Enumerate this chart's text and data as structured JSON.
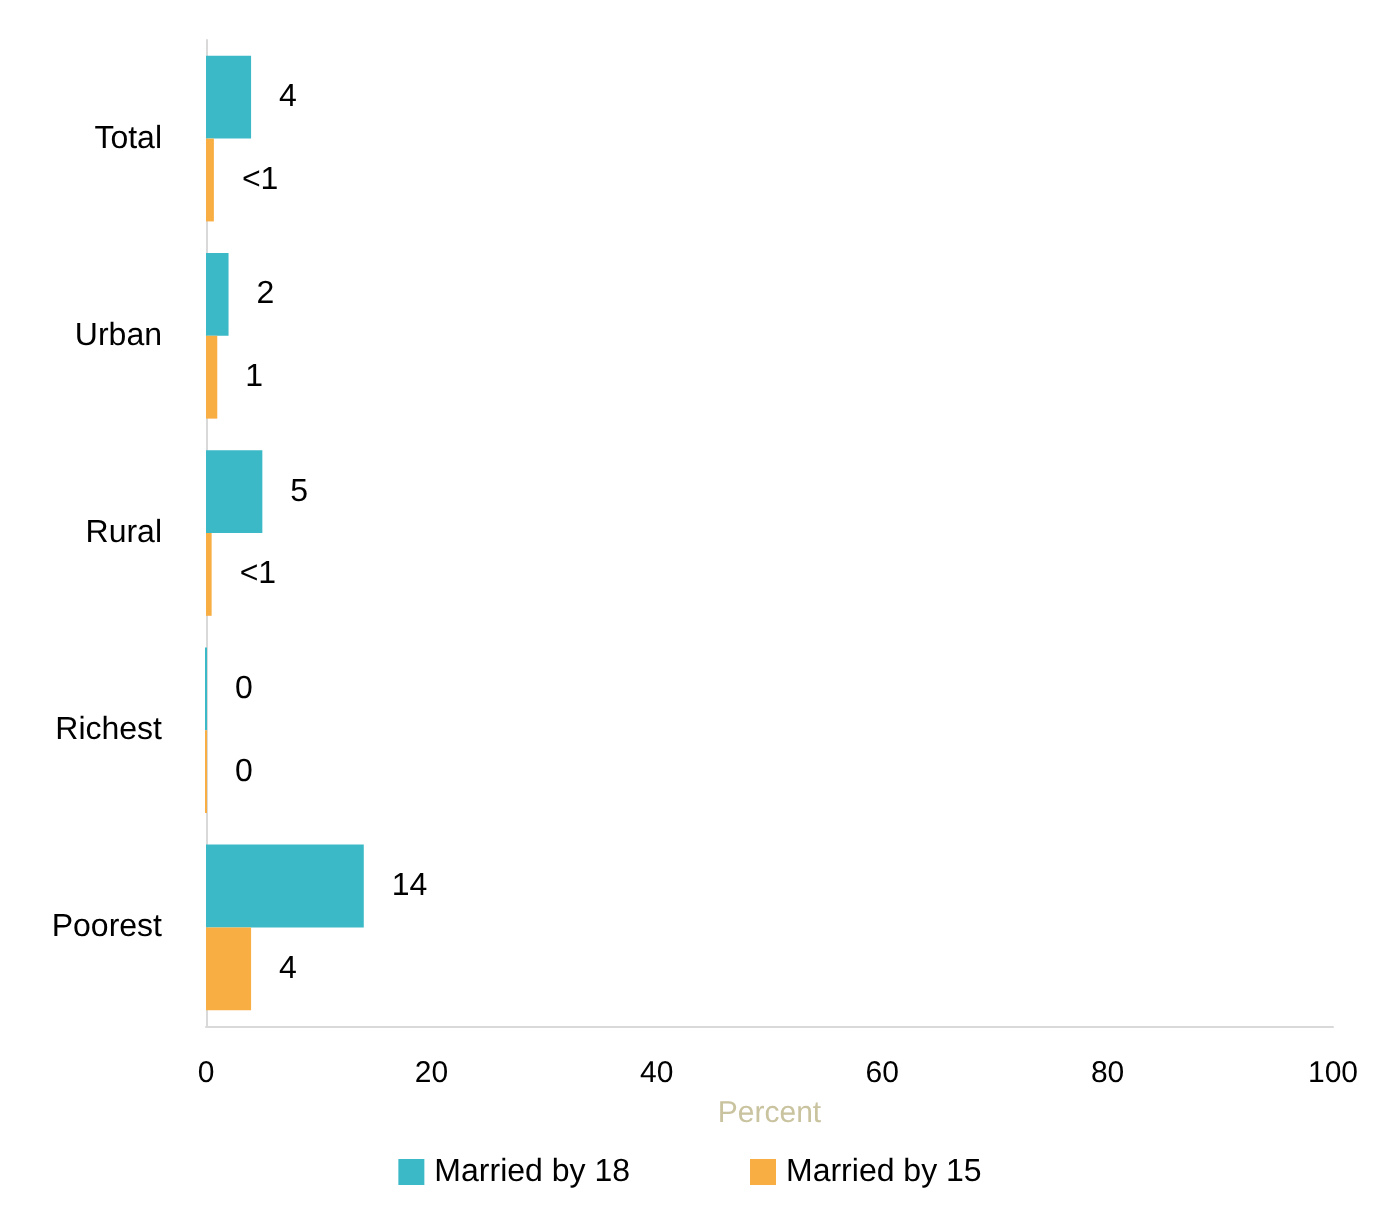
{
  "chart_data": {
    "type": "bar",
    "orientation": "horizontal",
    "categories": [
      "Total",
      "Urban",
      "Rural",
      "Richest",
      "Poorest"
    ],
    "xlabel": "Percent",
    "xlim": [
      0,
      100
    ],
    "xticks": [
      0,
      20,
      40,
      60,
      80,
      100
    ],
    "grid": false,
    "legend": "bottom",
    "series": [
      {
        "name": "Married by 18",
        "color": "#3bb9c6",
        "values": [
          4,
          2,
          5,
          0,
          14
        ],
        "value_labels": [
          "4",
          "2",
          "5",
          "0",
          "14"
        ]
      },
      {
        "name": "Married by 15",
        "color": "#f9ae43",
        "values": [
          0.7,
          1,
          0.5,
          0,
          4
        ],
        "value_labels": [
          "<1",
          "1",
          "<1",
          "0",
          "4"
        ]
      }
    ]
  }
}
